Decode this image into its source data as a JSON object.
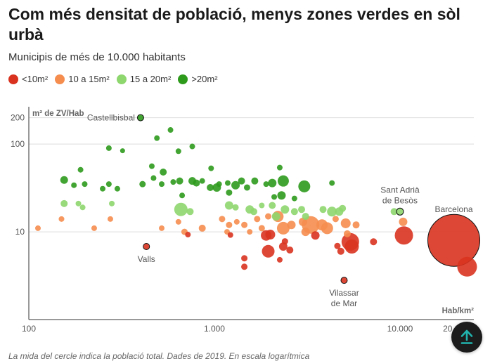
{
  "title": "Com més densitat de població, menys zones verdes en sòl urbà",
  "subtitle": "Municipis de més de 10.000 habitants",
  "legend": [
    {
      "label": "<10m²",
      "color": "#d9331f"
    },
    {
      "label": "10 a 15m²",
      "color": "#f58d4f"
    },
    {
      "label": "15 a 20m²",
      "color": "#8ed66e"
    },
    {
      "label": ">20m²",
      "color": "#2e9a1c"
    }
  ],
  "footnote": "La mida del cercle indica la població total. Dades de 2019. En escala logarítmica",
  "scroll_top_icon": "arrow-up-icon",
  "chart_data": {
    "type": "scatter",
    "title": "Com més densitat de població, menys zones verdes en sòl urbà",
    "xlabel": "Hab/km²",
    "ylabel": "m² de ZV/Hab",
    "xscale": "log",
    "yscale": "log",
    "xlim": [
      100,
      25000
    ],
    "ylim": [
      1,
      230
    ],
    "xticks": [
      {
        "v": 100,
        "label": "100"
      },
      {
        "v": 1000,
        "label": "1.000"
      },
      {
        "v": 10000,
        "label": "10.000"
      },
      {
        "v": 20000,
        "label": "20.000"
      }
    ],
    "yticks": [
      {
        "v": 10,
        "label": "10"
      },
      {
        "v": 100,
        "label": "100"
      },
      {
        "v": 200,
        "label": "200"
      }
    ],
    "annotations": [
      {
        "label": "Castellbisbal",
        "x": 400,
        "y": 200,
        "position": "left"
      },
      {
        "label": "Valls",
        "x": 430,
        "y": 6.8,
        "position": "below"
      },
      {
        "label": "Vilassar de Mar",
        "x": 5000,
        "y": 2.8,
        "position": "below"
      },
      {
        "label": "Sant Adrià de Besòs",
        "x": 10000,
        "y": 17,
        "position": "above"
      },
      {
        "label": "Barcelona",
        "x": 19500,
        "y": 8.0,
        "position": "above"
      }
    ],
    "series": [
      {
        "name": ">20m²",
        "color": "#2e9a1c",
        "points": [
          {
            "x": 400,
            "y": 200,
            "r": 4.5,
            "label": "Castellbisbal",
            "outline": true
          },
          {
            "x": 580,
            "y": 145,
            "r": 4
          },
          {
            "x": 270,
            "y": 90,
            "r": 4
          },
          {
            "x": 320,
            "y": 84,
            "r": 3.5
          },
          {
            "x": 490,
            "y": 117,
            "r": 4
          },
          {
            "x": 640,
            "y": 83,
            "r": 4
          },
          {
            "x": 760,
            "y": 94,
            "r": 4
          },
          {
            "x": 190,
            "y": 51,
            "r": 4
          },
          {
            "x": 460,
            "y": 56,
            "r": 4
          },
          {
            "x": 530,
            "y": 48,
            "r": 5
          },
          {
            "x": 2250,
            "y": 54,
            "r": 4
          },
          {
            "x": 960,
            "y": 53,
            "r": 4
          },
          {
            "x": 155,
            "y": 39,
            "r": 5.5
          },
          {
            "x": 175,
            "y": 34,
            "r": 4
          },
          {
            "x": 200,
            "y": 35,
            "r": 4
          },
          {
            "x": 270,
            "y": 35,
            "r": 4
          },
          {
            "x": 250,
            "y": 31,
            "r": 4
          },
          {
            "x": 300,
            "y": 31,
            "r": 4
          },
          {
            "x": 410,
            "y": 35,
            "r": 4.5
          },
          {
            "x": 470,
            "y": 41,
            "r": 4
          },
          {
            "x": 520,
            "y": 35,
            "r": 4
          },
          {
            "x": 600,
            "y": 37,
            "r": 4
          },
          {
            "x": 650,
            "y": 38,
            "r": 5
          },
          {
            "x": 760,
            "y": 38,
            "r": 5.5
          },
          {
            "x": 800,
            "y": 36,
            "r": 5
          },
          {
            "x": 860,
            "y": 38,
            "r": 4
          },
          {
            "x": 950,
            "y": 32,
            "r": 5
          },
          {
            "x": 1030,
            "y": 32,
            "r": 6
          },
          {
            "x": 1060,
            "y": 35,
            "r": 4
          },
          {
            "x": 1180,
            "y": 36,
            "r": 4
          },
          {
            "x": 1300,
            "y": 34,
            "r": 6
          },
          {
            "x": 1400,
            "y": 38,
            "r": 5
          },
          {
            "x": 1500,
            "y": 32,
            "r": 4.5
          },
          {
            "x": 1650,
            "y": 38,
            "r": 5
          },
          {
            "x": 1900,
            "y": 35,
            "r": 4
          },
          {
            "x": 2050,
            "y": 36,
            "r": 6
          },
          {
            "x": 2350,
            "y": 38,
            "r": 8
          },
          {
            "x": 2100,
            "y": 25,
            "r": 4
          },
          {
            "x": 2300,
            "y": 26,
            "r": 6
          },
          {
            "x": 3050,
            "y": 33,
            "r": 8.5
          },
          {
            "x": 4300,
            "y": 36,
            "r": 4
          },
          {
            "x": 1200,
            "y": 28,
            "r": 4.5
          },
          {
            "x": 670,
            "y": 26,
            "r": 4
          },
          {
            "x": 2700,
            "y": 24,
            "r": 4
          }
        ]
      },
      {
        "name": "15 a 20m²",
        "color": "#8ed66e",
        "points": [
          {
            "x": 155,
            "y": 21,
            "r": 5
          },
          {
            "x": 185,
            "y": 21,
            "r": 4
          },
          {
            "x": 195,
            "y": 19,
            "r": 4
          },
          {
            "x": 280,
            "y": 21,
            "r": 4
          },
          {
            "x": 660,
            "y": 18,
            "r": 9.5
          },
          {
            "x": 740,
            "y": 17,
            "r": 5
          },
          {
            "x": 1200,
            "y": 20,
            "r": 6
          },
          {
            "x": 1300,
            "y": 19,
            "r": 4.5
          },
          {
            "x": 1550,
            "y": 18,
            "r": 6
          },
          {
            "x": 1630,
            "y": 17,
            "r": 5
          },
          {
            "x": 1800,
            "y": 20,
            "r": 4
          },
          {
            "x": 2050,
            "y": 20,
            "r": 5
          },
          {
            "x": 2400,
            "y": 18,
            "r": 6
          },
          {
            "x": 2700,
            "y": 17,
            "r": 5
          },
          {
            "x": 2950,
            "y": 18,
            "r": 5
          },
          {
            "x": 3850,
            "y": 18,
            "r": 5
          },
          {
            "x": 4300,
            "y": 17,
            "r": 7
          },
          {
            "x": 4700,
            "y": 17,
            "r": 6
          },
          {
            "x": 4900,
            "y": 18.5,
            "r": 5
          },
          {
            "x": 2150,
            "y": 15,
            "r": 6
          },
          {
            "x": 3100,
            "y": 15,
            "r": 5
          },
          {
            "x": 9300,
            "y": 17,
            "r": 5
          },
          {
            "x": 10000,
            "y": 17,
            "r": 5,
            "label": "Sant Adrià de Besòs",
            "outline": true
          }
        ]
      },
      {
        "name": "10 a 15m²",
        "color": "#f58d4f",
        "points": [
          {
            "x": 112,
            "y": 11,
            "r": 4
          },
          {
            "x": 150,
            "y": 14,
            "r": 4
          },
          {
            "x": 225,
            "y": 11,
            "r": 4
          },
          {
            "x": 275,
            "y": 14,
            "r": 4
          },
          {
            "x": 520,
            "y": 11,
            "r": 4
          },
          {
            "x": 640,
            "y": 13,
            "r": 4
          },
          {
            "x": 690,
            "y": 10,
            "r": 4.5
          },
          {
            "x": 860,
            "y": 11,
            "r": 5
          },
          {
            "x": 1100,
            "y": 14,
            "r": 4.5
          },
          {
            "x": 1200,
            "y": 12,
            "r": 4.5
          },
          {
            "x": 1170,
            "y": 10,
            "r": 4
          },
          {
            "x": 1320,
            "y": 13,
            "r": 4
          },
          {
            "x": 1450,
            "y": 12,
            "r": 4.5
          },
          {
            "x": 1550,
            "y": 10,
            "r": 4
          },
          {
            "x": 1700,
            "y": 14,
            "r": 4.5
          },
          {
            "x": 1800,
            "y": 11,
            "r": 4.5
          },
          {
            "x": 1950,
            "y": 15,
            "r": 4.5
          },
          {
            "x": 2200,
            "y": 15,
            "r": 8
          },
          {
            "x": 2350,
            "y": 11,
            "r": 9
          },
          {
            "x": 2600,
            "y": 12,
            "r": 6
          },
          {
            "x": 3000,
            "y": 13,
            "r": 6
          },
          {
            "x": 3100,
            "y": 10,
            "r": 6
          },
          {
            "x": 3300,
            "y": 12,
            "r": 12.5
          },
          {
            "x": 3800,
            "y": 12,
            "r": 8
          },
          {
            "x": 4050,
            "y": 11,
            "r": 8.5
          },
          {
            "x": 4500,
            "y": 14,
            "r": 4.5
          },
          {
            "x": 5100,
            "y": 12.5,
            "r": 7
          },
          {
            "x": 5800,
            "y": 12,
            "r": 5
          },
          {
            "x": 5200,
            "y": 9.5,
            "r": 5
          },
          {
            "x": 10400,
            "y": 13,
            "r": 6
          }
        ]
      },
      {
        "name": "<10m²",
        "color": "#d9331f",
        "points": [
          {
            "x": 430,
            "y": 6.8,
            "r": 4.5,
            "label": "Valls",
            "outline": true
          },
          {
            "x": 720,
            "y": 9.3,
            "r": 4
          },
          {
            "x": 1220,
            "y": 9.2,
            "r": 4
          },
          {
            "x": 1450,
            "y": 5.0,
            "r": 4.5
          },
          {
            "x": 1450,
            "y": 4.0,
            "r": 4.5
          },
          {
            "x": 1900,
            "y": 9.1,
            "r": 7.5
          },
          {
            "x": 2000,
            "y": 9.3,
            "r": 7
          },
          {
            "x": 1950,
            "y": 6.0,
            "r": 9
          },
          {
            "x": 2250,
            "y": 4.8,
            "r": 4
          },
          {
            "x": 2400,
            "y": 7.8,
            "r": 4.5
          },
          {
            "x": 2350,
            "y": 6.8,
            "r": 6
          },
          {
            "x": 2550,
            "y": 6.2,
            "r": 5
          },
          {
            "x": 3500,
            "y": 9.1,
            "r": 6
          },
          {
            "x": 4600,
            "y": 6.9,
            "r": 4.5
          },
          {
            "x": 4800,
            "y": 6.0,
            "r": 5
          },
          {
            "x": 5000,
            "y": 2.8,
            "r": 4.5,
            "label": "Vilassar de Mar",
            "outline": true
          },
          {
            "x": 5400,
            "y": 7.7,
            "r": 12.5
          },
          {
            "x": 5500,
            "y": 6.8,
            "r": 10
          },
          {
            "x": 7200,
            "y": 7.7,
            "r": 5
          },
          {
            "x": 10500,
            "y": 9.1,
            "r": 13
          },
          {
            "x": 19500,
            "y": 8.0,
            "r": 37,
            "label": "Barcelona",
            "outline": true
          },
          {
            "x": 23000,
            "y": 4.0,
            "r": 14
          }
        ]
      }
    ]
  }
}
